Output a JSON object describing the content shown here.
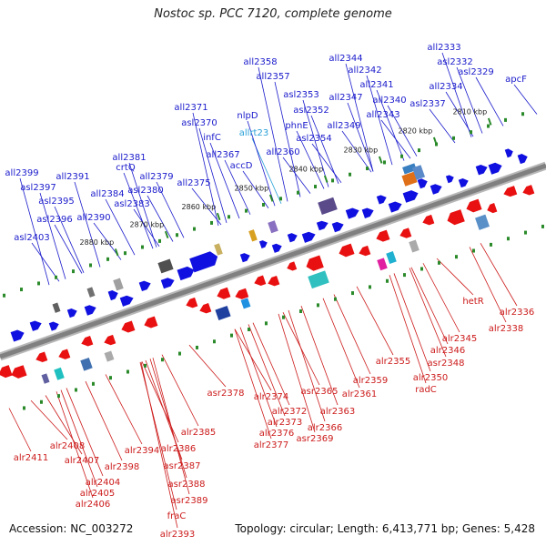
{
  "title": "Nostoc sp. PCC 7120, complete genome",
  "footer": {
    "accession": "Accession: NC_003272",
    "summary": "Topology: circular; Length: 6,413,771 bp; Genes: 5,428"
  },
  "colors": {
    "forward_label": "#1a1acc",
    "reverse_label": "#cc1a1a",
    "rna_label": "#29a0d8",
    "forward_feature": "#1010e0",
    "reverse_feature": "#e81010",
    "backbone": "#808080",
    "tick": "#2a8a2a"
  },
  "ticks": [
    "2810 kbp",
    "2820 kbp",
    "2830 kbp",
    "2840 kbp",
    "2850 kbp",
    "2860 kbp",
    "2870 kbp",
    "2880 kbp"
  ],
  "forward_genes": [
    "apcF",
    "asl2329",
    "asl2332",
    "all2333",
    "all2334",
    "asl2337",
    "all2340",
    "all2341",
    "all2342",
    "all2343",
    "all2344",
    "all2347",
    "all2349",
    "asl2352",
    "asl2353",
    "asl2354",
    "phnE",
    "all2357",
    "all2358",
    "all2360",
    "accD",
    "allrt23",
    "nlpD",
    "all2367",
    "infC",
    "asl2370",
    "all2371",
    "all2375",
    "all2379",
    "asl2380",
    "crtQ",
    "all2381",
    "asl2383",
    "all2384",
    "all2390",
    "all2391",
    "asl2395",
    "asl2396",
    "asl2397",
    "all2399",
    "asl2403"
  ],
  "reverse_genes": [
    "alr2336",
    "alr2338",
    "hetR",
    "alr2345",
    "alr2346",
    "asr2348",
    "alr2350",
    "radC",
    "alr2355",
    "alr2359",
    "alr2361",
    "alr2363",
    "asr2365",
    "alr2366",
    "asr2369",
    "alr2372",
    "alr2373",
    "alr2374",
    "alr2376",
    "alr2377",
    "asr2378",
    "alr2385",
    "alr2386",
    "asr2387",
    "asr2388",
    "asr2389",
    "fraC",
    "alr2393",
    "alr2394",
    "alr2398",
    "alr2404",
    "alr2405",
    "alr2406",
    "alr2407",
    "alr2408",
    "alr2411"
  ]
}
